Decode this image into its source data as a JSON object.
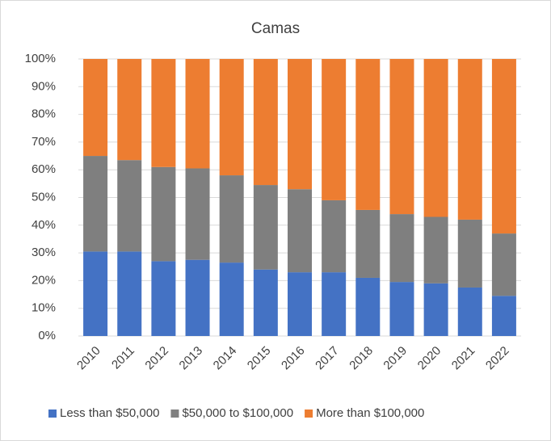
{
  "chart_data": {
    "type": "stacked_bar",
    "title": "Camas",
    "categories": [
      "2010",
      "2011",
      "2012",
      "2013",
      "2014",
      "2015",
      "2016",
      "2017",
      "2018",
      "2019",
      "2020",
      "2021",
      "2022"
    ],
    "series": [
      {
        "name": "Less than $50,000",
        "color": "#4472c4",
        "values": [
          30.5,
          30.5,
          27,
          27.5,
          26.5,
          24,
          23,
          23,
          21,
          19.5,
          19,
          17.5,
          14.5
        ]
      },
      {
        "name": "$50,000 to $100,000",
        "color": "#7f7f7f",
        "values": [
          34.5,
          33,
          34,
          33,
          31.5,
          30.5,
          30,
          26,
          24.5,
          24.5,
          24,
          24.5,
          22.5
        ]
      },
      {
        "name": "More than $100,000",
        "color": "#ed7d31",
        "values": [
          35,
          36.5,
          39,
          39.5,
          42,
          45.5,
          47,
          51,
          54.5,
          56,
          57,
          58,
          63
        ]
      }
    ],
    "ylim": [
      0,
      100
    ],
    "yticks": [
      {
        "value": 0,
        "label": "0%"
      },
      {
        "value": 10,
        "label": "10%"
      },
      {
        "value": 20,
        "label": "20%"
      },
      {
        "value": 30,
        "label": "30%"
      },
      {
        "value": 40,
        "label": "40%"
      },
      {
        "value": 50,
        "label": "50%"
      },
      {
        "value": 60,
        "label": "60%"
      },
      {
        "value": 70,
        "label": "70%"
      },
      {
        "value": 80,
        "label": "80%"
      },
      {
        "value": 90,
        "label": "90%"
      },
      {
        "value": 100,
        "label": "100%"
      }
    ],
    "grid": true,
    "legend": "bottom"
  }
}
